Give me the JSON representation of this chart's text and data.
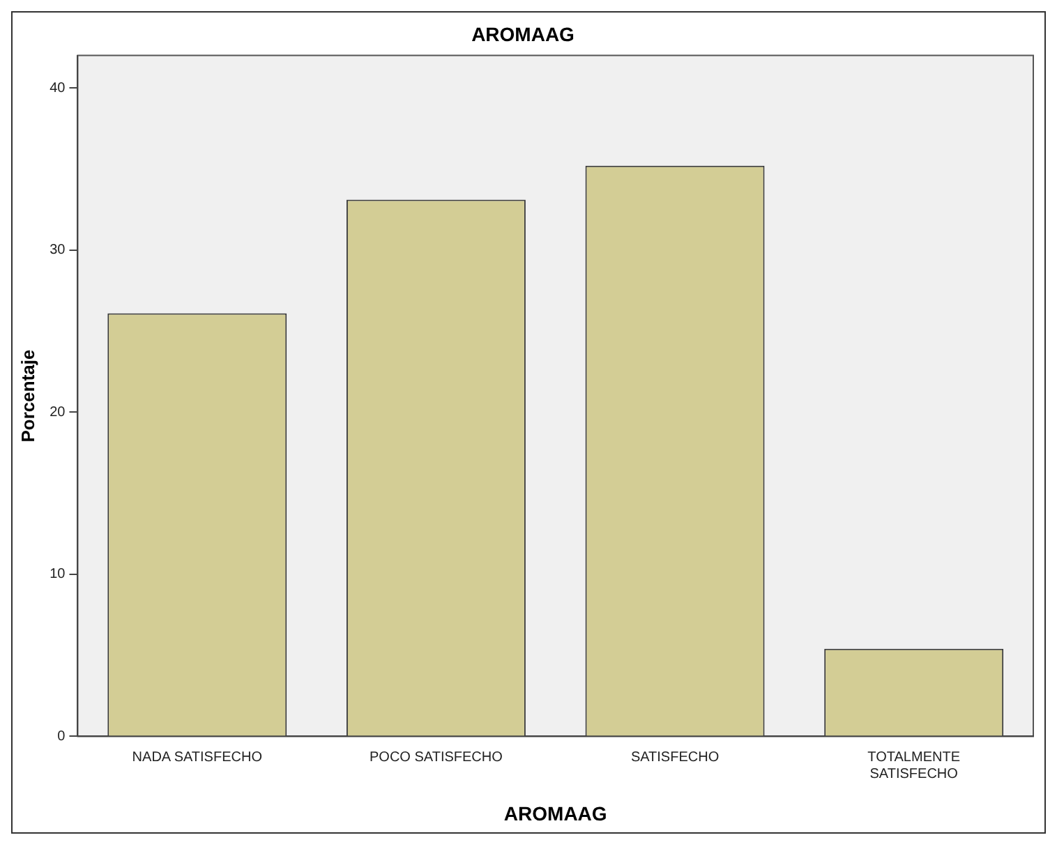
{
  "chart_data": {
    "type": "bar",
    "title": "AROMAAG",
    "xlabel": "AROMAAG",
    "ylabel": "Porcentaje",
    "categories": [
      "NADA SATISFECHO",
      "POCO SATISFECHO",
      "SATISFECHO",
      "TOTALMENTE SATISFECHO"
    ],
    "values": [
      26.1,
      33.1,
      35.2,
      5.4
    ],
    "color": "#d3cd95",
    "ylim": [
      0,
      42
    ],
    "yticks": [
      0,
      10,
      20,
      30,
      40
    ],
    "grid": false,
    "legend": false
  }
}
